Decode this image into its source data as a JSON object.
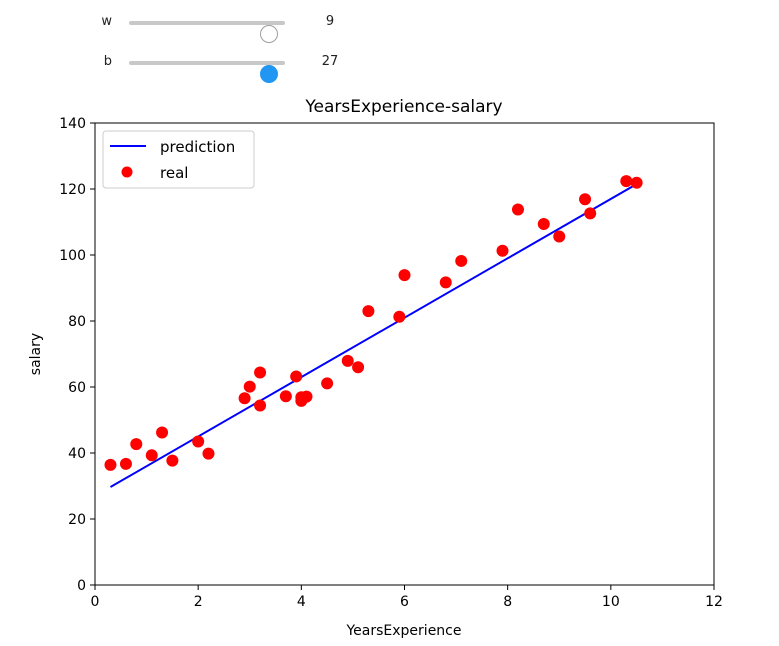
{
  "sliders": [
    {
      "label": "w",
      "value": 9,
      "min": 0,
      "max": 10,
      "style": "white"
    },
    {
      "label": "b",
      "value": 27,
      "min": 0,
      "max": 30,
      "style": "blue"
    }
  ],
  "chart_data": {
    "type": "scatter",
    "title": "YearsExperience-salary",
    "xlabel": "YearsExperience",
    "ylabel": "salary",
    "xlim": [
      0,
      12
    ],
    "ylim": [
      0,
      140
    ],
    "xticks": [
      0,
      2,
      4,
      6,
      8,
      10,
      12
    ],
    "yticks": [
      0,
      20,
      40,
      60,
      80,
      100,
      120,
      140
    ],
    "grid": false,
    "legend_position": "upper-left",
    "series": [
      {
        "name": "prediction",
        "type": "line",
        "color": "#0000ff",
        "x": [
          0.3,
          10.5
        ],
        "y": [
          29.7,
          121.5
        ]
      },
      {
        "name": "real",
        "type": "scatter",
        "color": "#ff0000",
        "x": [
          0.3,
          0.6,
          0.8,
          1.1,
          1.3,
          1.5,
          2.0,
          2.2,
          2.9,
          3.0,
          3.2,
          3.2,
          3.7,
          3.9,
          4.0,
          4.0,
          4.1,
          4.5,
          4.9,
          5.1,
          5.3,
          5.9,
          6.0,
          6.8,
          7.1,
          7.9,
          8.2,
          8.7,
          9.0,
          9.5,
          9.6,
          10.3,
          10.5
        ],
        "y": [
          36.4,
          36.7,
          42.7,
          39.3,
          46.2,
          37.7,
          43.5,
          39.8,
          56.6,
          60.1,
          54.4,
          64.4,
          57.2,
          63.2,
          55.8,
          56.9,
          57.1,
          61.1,
          67.9,
          66.0,
          83.0,
          81.3,
          93.9,
          91.7,
          98.2,
          101.3,
          113.8,
          109.4,
          105.6,
          116.9,
          112.6,
          122.4,
          121.9
        ]
      }
    ]
  }
}
